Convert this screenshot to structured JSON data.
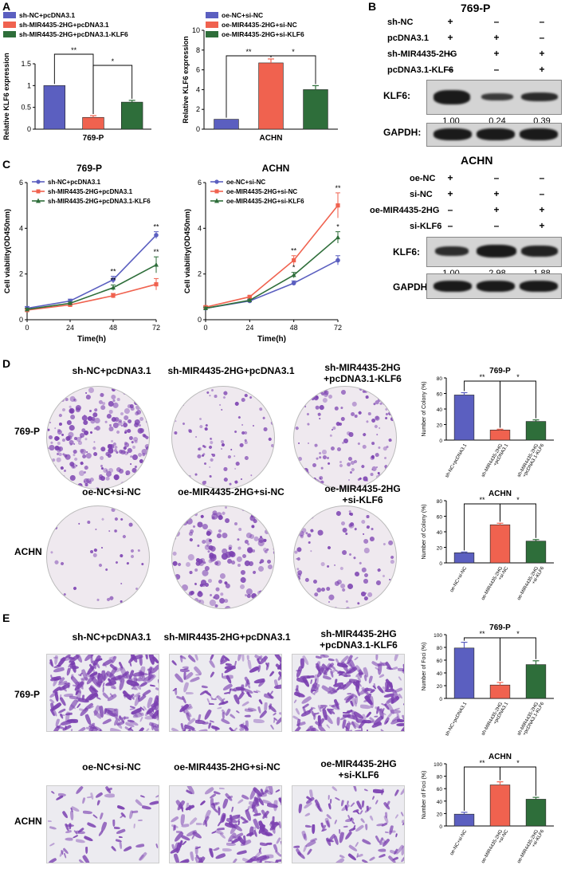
{
  "panel_letters": {
    "A": "A",
    "B": "B",
    "C": "C",
    "D": "D",
    "E": "E"
  },
  "colors": {
    "blue": "#5b5fc0",
    "red": "#f0624f",
    "green": "#2e6e3a",
    "stain": "#7a3fb0"
  },
  "western": {
    "top": {
      "title": "769-P",
      "rows": [
        {
          "label": "sh-NC",
          "signs": [
            "+",
            "–",
            "–"
          ]
        },
        {
          "label": "pcDNA3.1",
          "signs": [
            "+",
            "+",
            "–"
          ]
        },
        {
          "label": "sh-MIR4435-2HG",
          "signs": [
            "–",
            "+",
            "+"
          ]
        },
        {
          "label": "pcDNA3.1-KLF6",
          "signs": [
            "–",
            "–",
            "+"
          ]
        }
      ],
      "klf6_label": "KLF6:",
      "values": [
        "1.00",
        "0.24",
        "0.39"
      ],
      "gapdh_label": "GAPDH:"
    },
    "bottom": {
      "title": "ACHN",
      "rows": [
        {
          "label": "oe-NC",
          "signs": [
            "+",
            "–",
            "–"
          ]
        },
        {
          "label": "si-NC",
          "signs": [
            "+",
            "+",
            "–"
          ]
        },
        {
          "label": "oe-MIR4435-2HG",
          "signs": [
            "–",
            "+",
            "+"
          ]
        },
        {
          "label": "si-KLF6",
          "signs": [
            "–",
            "–",
            "+"
          ]
        }
      ],
      "klf6_label": "KLF6:",
      "values": [
        "1.00",
        "2.98",
        "1.88"
      ],
      "gapdh_label": "GAPDH:"
    }
  },
  "colony": {
    "top_titles": [
      "sh-NC+pcDNA3.1",
      "sh-MIR4435-2HG+pcDNA3.1",
      "sh-MIR4435-2HG\n+pcDNA3.1-KLF6"
    ],
    "bottom_titles": [
      "oe-NC+si-NC",
      "oe-MIR4435-2HG+si-NC",
      "oe-MIR4435-2HG\n+si-KLF6"
    ],
    "row_labels": [
      "769-P",
      "ACHN"
    ]
  },
  "foci": {
    "top_titles": [
      "sh-NC+pcDNA3.1",
      "sh-MIR4435-2HG+pcDNA3.1",
      "sh-MIR4435-2HG\n+pcDNA3.1-KLF6"
    ],
    "bottom_titles": [
      "oe-NC+si-NC",
      "oe-MIR4435-2HG+si-NC",
      "oe-MIR4435-2HG\n+si-KLF6"
    ],
    "row_labels": [
      "769-P",
      "ACHN"
    ]
  },
  "chart_data": [
    {
      "id": "A1",
      "type": "bar",
      "title": "",
      "ylabel": "Relative KLF6 expression",
      "xlabel": "769-P",
      "ylim": [
        0,
        1.5
      ],
      "yticks": [
        0,
        0.5,
        1,
        1.5
      ],
      "categories": [
        "sh-NC+pcDNA3.1",
        "sh-MIR4435-2HG+pcDNA3.1",
        "sh-MIR4435-2HG+pcDNA3.1-KLF6"
      ],
      "values": [
        1.0,
        0.27,
        0.62
      ],
      "errors": [
        0,
        0.04,
        0.04
      ],
      "legend": [
        "sh-NC+pcDNA3.1",
        "sh-MIR4435-2HG+pcDNA3.1",
        "sh-MIR4435-2HG+pcDNA3.1-KLF6"
      ],
      "sig": [
        {
          "from": 0,
          "to": 1,
          "label": "**"
        },
        {
          "from": 1,
          "to": 2,
          "label": "*"
        }
      ]
    },
    {
      "id": "A2",
      "type": "bar",
      "title": "",
      "ylabel": "Relative KLF6 expression",
      "xlabel": "ACHN",
      "ylim": [
        0,
        10
      ],
      "yticks": [
        0,
        2,
        4,
        6,
        8,
        10
      ],
      "categories": [
        "oe-NC+si-NC",
        "oe-MIR4435-2HG+si-NC",
        "oe-MIR4435-2HG+si-KLF6"
      ],
      "values": [
        1.0,
        6.7,
        4.0
      ],
      "errors": [
        0,
        0.4,
        0.4
      ],
      "legend": [
        "oe-NC+si-NC",
        "oe-MIR4435-2HG+si-NC",
        "oe-MIR4435-2HG+si-KLF6"
      ],
      "sig": [
        {
          "from": 0,
          "to": 1,
          "label": "**"
        },
        {
          "from": 1,
          "to": 2,
          "label": "*"
        }
      ]
    },
    {
      "id": "C1",
      "type": "line",
      "title": "769-P",
      "ylabel": "Cell viability(OD450nm)",
      "xlabel": "Time(h)",
      "x": [
        0,
        24,
        48,
        72
      ],
      "xticks": [
        0,
        24,
        48,
        72
      ],
      "ylim": [
        0,
        6
      ],
      "yticks": [
        0,
        2,
        4,
        6
      ],
      "series": [
        {
          "name": "sh-NC+pcDNA3.1",
          "values": [
            0.5,
            0.82,
            1.75,
            3.7
          ],
          "errors": [
            0.08,
            0.08,
            0.15,
            0.15
          ]
        },
        {
          "name": "sh-MIR4435-2HG+pcDNA3.1",
          "values": [
            0.42,
            0.65,
            1.05,
            1.55
          ],
          "errors": [
            0.05,
            0.05,
            0.1,
            0.25
          ]
        },
        {
          "name": "sh-MIR4435-2HG+pcDNA3.1-KLF6",
          "values": [
            0.45,
            0.72,
            1.4,
            2.4
          ],
          "errors": [
            0.05,
            0.05,
            0.12,
            0.35
          ]
        }
      ],
      "sig": [
        {
          "xi": 2,
          "labels": [
            "**",
            "**"
          ]
        },
        {
          "xi": 3,
          "labels": [
            "**",
            "**"
          ]
        }
      ]
    },
    {
      "id": "C2",
      "type": "line",
      "title": "ACHN",
      "ylabel": "Cell viability(OD450nm)",
      "xlabel": "Time(h)",
      "x": [
        0,
        24,
        48,
        72
      ],
      "xticks": [
        0,
        24,
        48,
        72
      ],
      "ylim": [
        0,
        6
      ],
      "yticks": [
        0,
        2,
        4,
        6
      ],
      "series": [
        {
          "name": "oe-NC+si-NC",
          "values": [
            0.5,
            0.82,
            1.6,
            2.6
          ],
          "errors": [
            0.05,
            0.05,
            0.1,
            0.2
          ]
        },
        {
          "name": "oe-MIR4435-2HG+si-NC",
          "values": [
            0.55,
            1.0,
            2.6,
            5.0
          ],
          "errors": [
            0.05,
            0.05,
            0.2,
            0.55
          ]
        },
        {
          "name": "oe-MIR4435-2HG+si-KLF6",
          "values": [
            0.5,
            0.85,
            1.95,
            3.6
          ],
          "errors": [
            0.05,
            0.05,
            0.12,
            0.25
          ]
        }
      ],
      "sig": [
        {
          "xi": 2,
          "labels": [
            "**",
            "*"
          ]
        },
        {
          "xi": 3,
          "labels": [
            "**",
            "*"
          ]
        }
      ]
    },
    {
      "id": "D1",
      "type": "bar",
      "title": "769-P",
      "ylabel": "Number of Colony (%)",
      "ylim": [
        0,
        80
      ],
      "yticks": [
        0,
        20,
        40,
        60,
        80
      ],
      "categories": [
        "sh-NC+pcDNA3.1",
        "sh-MIR4435-2HG\n+pcDNA3.1",
        "sh-MIR4435-2HG\n+pcDNA3.1-KLF6"
      ],
      "values": [
        58,
        13,
        24
      ],
      "errors": [
        3,
        1,
        2
      ],
      "sig": [
        {
          "from": 0,
          "to": 1,
          "label": "**"
        },
        {
          "from": 1,
          "to": 2,
          "label": "*"
        }
      ]
    },
    {
      "id": "D2",
      "type": "bar",
      "title": "ACHN",
      "ylabel": "Number of Colony (%)",
      "ylim": [
        0,
        80
      ],
      "yticks": [
        0,
        20,
        40,
        60,
        80
      ],
      "categories": [
        "oe-NC+si-NC",
        "oe-MIR4435-2HG\n+si-NC",
        "oe-MIR4435-2HG\n+si-KLF6"
      ],
      "values": [
        13,
        49,
        28
      ],
      "errors": [
        1,
        2,
        2
      ],
      "sig": [
        {
          "from": 0,
          "to": 1,
          "label": "**"
        },
        {
          "from": 1,
          "to": 2,
          "label": "*"
        }
      ]
    },
    {
      "id": "E1",
      "type": "bar",
      "title": "769-P",
      "ylabel": "Number of Foci (%)",
      "ylim": [
        0,
        100
      ],
      "yticks": [
        0,
        20,
        40,
        60,
        80,
        100
      ],
      "categories": [
        "sh-NC+pcDNA3.1",
        "sh-MIR4435-2HG\n+pcDNA3.1",
        "sh-MIR4435-2HG\n+pcDNA3.1-KLF6"
      ],
      "values": [
        79,
        21,
        53
      ],
      "errors": [
        9,
        4,
        6
      ],
      "sig": [
        {
          "from": 0,
          "to": 1,
          "label": "**"
        },
        {
          "from": 1,
          "to": 2,
          "label": "*"
        }
      ]
    },
    {
      "id": "E2",
      "type": "bar",
      "title": "ACHN",
      "ylabel": "Number of Foci (%)",
      "ylim": [
        0,
        100
      ],
      "yticks": [
        0,
        20,
        40,
        60,
        80,
        100
      ],
      "categories": [
        "oe-NC+si-NC",
        "oe-MIR4435-2HG\n+si-NC",
        "oe-MIR4435-2HG\n+si-KLF6"
      ],
      "values": [
        19,
        66,
        43
      ],
      "errors": [
        3,
        5,
        3
      ],
      "sig": [
        {
          "from": 0,
          "to": 1,
          "label": "**"
        },
        {
          "from": 1,
          "to": 2,
          "label": "*"
        }
      ]
    }
  ]
}
